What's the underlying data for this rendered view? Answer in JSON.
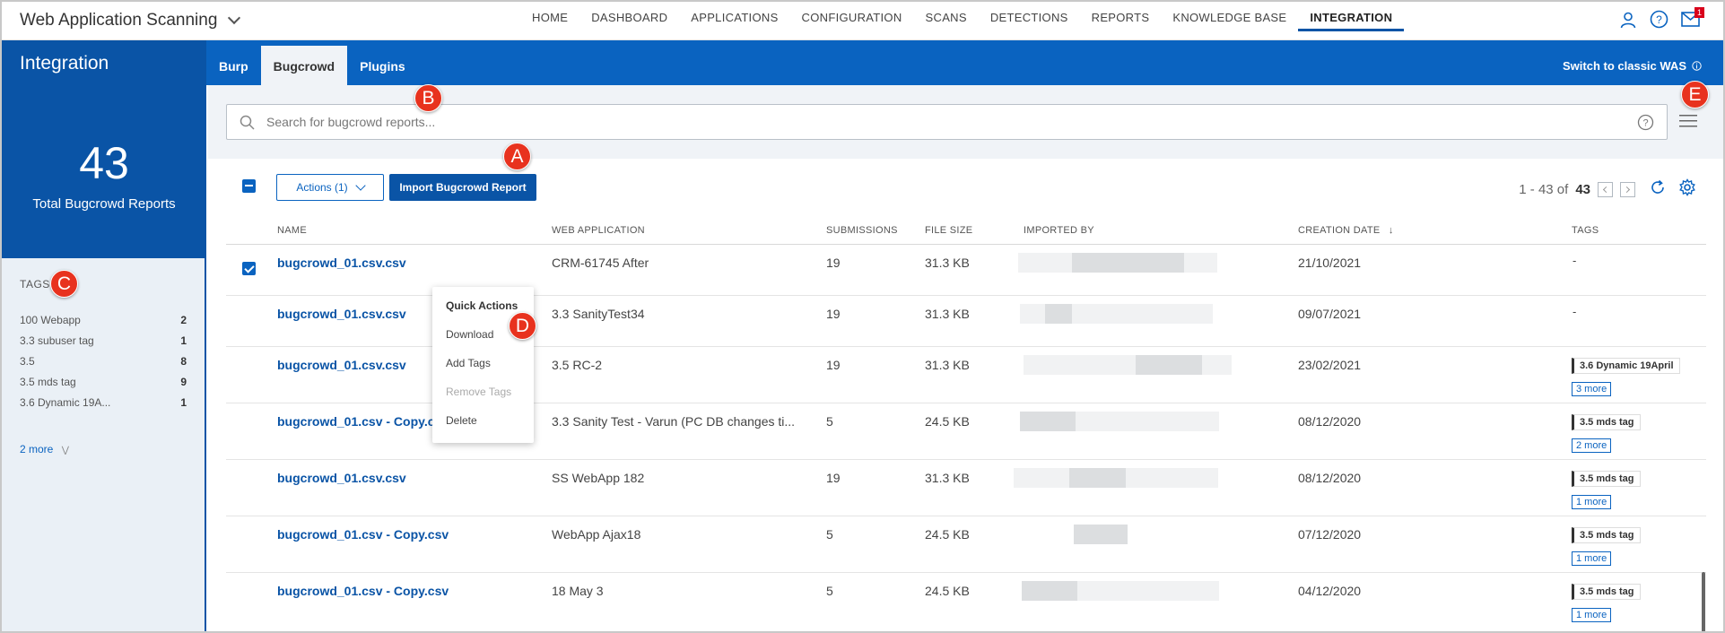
{
  "app": {
    "title": "Web Application Scanning"
  },
  "nav": {
    "items": [
      "HOME",
      "DASHBOARD",
      "APPLICATIONS",
      "CONFIGURATION",
      "SCANS",
      "DETECTIONS",
      "REPORTS",
      "KNOWLEDGE BASE",
      "INTEGRATION"
    ],
    "active": "INTEGRATION"
  },
  "notifications": {
    "count": "1"
  },
  "section": {
    "title": "Integration"
  },
  "tabs": [
    "Burp",
    "Bugcrowd",
    "Plugins"
  ],
  "switch_label": "Switch to classic WAS",
  "counter": {
    "value": "43",
    "label": "Total Bugcrowd Reports"
  },
  "tags_panel": {
    "title": "TAGS",
    "items": [
      {
        "label": "100 Webapp",
        "count": "2"
      },
      {
        "label": "3.3 subuser tag",
        "count": "1"
      },
      {
        "label": "3.5",
        "count": "8"
      },
      {
        "label": "3.5 mds tag",
        "count": "9"
      },
      {
        "label": "3.6 Dynamic 19A...",
        "count": "1"
      }
    ],
    "more": "2 more"
  },
  "search": {
    "placeholder": "Search for bugcrowd reports..."
  },
  "toolbar": {
    "actions_label": "Actions (1)",
    "import_label": "Import Bugcrowd Report"
  },
  "pager": {
    "range": "1 - 43 of",
    "total": "43"
  },
  "table": {
    "columns": [
      "NAME",
      "WEB APPLICATION",
      "SUBMISSIONS",
      "FILE SIZE",
      "IMPORTED BY",
      "CREATION DATE",
      "TAGS"
    ],
    "rows": [
      {
        "name": "bugcrowd_01.csv.csv",
        "webapp": "CRM-61745 After",
        "submissions": "19",
        "size": "31.3 KB",
        "date": "21/10/2021",
        "tag": "",
        "more": "",
        "dash": "-",
        "checked": true
      },
      {
        "name": "bugcrowd_01.csv.csv",
        "webapp": "3.3 SanityTest34",
        "submissions": "19",
        "size": "31.3 KB",
        "date": "09/07/2021",
        "tag": "",
        "more": "",
        "dash": "-",
        "checked": false
      },
      {
        "name": "bugcrowd_01.csv.csv",
        "webapp": "3.5 RC-2",
        "submissions": "19",
        "size": "31.3 KB",
        "date": "23/02/2021",
        "tag": "3.6 Dynamic 19April",
        "more": "3 more",
        "dash": "",
        "checked": false
      },
      {
        "name": "bugcrowd_01.csv - Copy.csv",
        "webapp": "3.3 Sanity Test - Varun (PC DB changes ti...",
        "submissions": "5",
        "size": "24.5 KB",
        "date": "08/12/2020",
        "tag": "3.5 mds tag",
        "more": "2 more",
        "dash": "",
        "checked": false
      },
      {
        "name": "bugcrowd_01.csv.csv",
        "webapp": "SS WebApp 182",
        "submissions": "19",
        "size": "31.3 KB",
        "date": "08/12/2020",
        "tag": "3.5 mds tag",
        "more": "1 more",
        "dash": "",
        "checked": false
      },
      {
        "name": "bugcrowd_01.csv - Copy.csv",
        "webapp": "WebApp Ajax18",
        "submissions": "5",
        "size": "24.5 KB",
        "date": "07/12/2020",
        "tag": "3.5 mds tag",
        "more": "1 more",
        "dash": "",
        "checked": false
      },
      {
        "name": "bugcrowd_01.csv - Copy.csv",
        "webapp": "18 May 3",
        "submissions": "5",
        "size": "24.5 KB",
        "date": "04/12/2020",
        "tag": "3.5 mds tag",
        "more": "1 more",
        "dash": "",
        "checked": false
      }
    ]
  },
  "quick_actions": {
    "title": "Quick Actions",
    "items": [
      {
        "label": "Download",
        "disabled": false
      },
      {
        "label": "Add Tags",
        "disabled": false
      },
      {
        "label": "Remove Tags",
        "disabled": true
      },
      {
        "label": "Delete",
        "disabled": false
      }
    ]
  },
  "callouts": [
    "A",
    "B",
    "C",
    "D",
    "E"
  ],
  "colors": {
    "brand_blue": "#0a54a6",
    "accent_blue": "#0a63c0",
    "callout_red": "#e8321e"
  }
}
